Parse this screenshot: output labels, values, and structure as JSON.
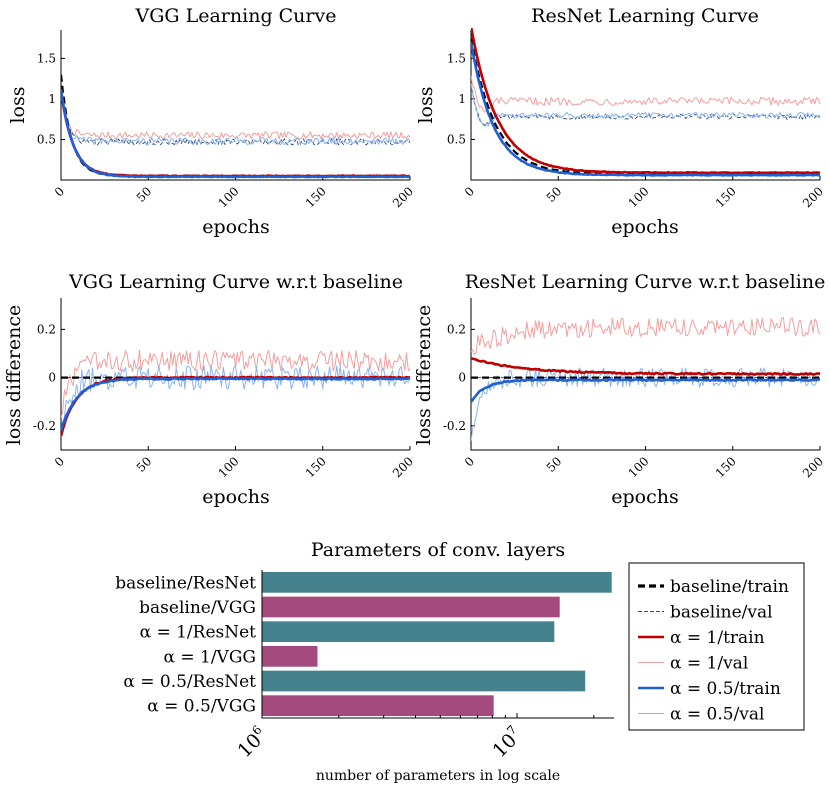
{
  "legend": {
    "items": [
      {
        "label": "baseline/train",
        "color": "#000000",
        "style": "dashed-bold"
      },
      {
        "label": "baseline/val",
        "color": "#2b4b7a",
        "style": "dashed-thin"
      },
      {
        "label": "α = 1/train",
        "color": "#c00000",
        "style": "bold"
      },
      {
        "label": "α = 1/val",
        "color": "#f0a0a0",
        "style": "thin"
      },
      {
        "label": "α = 0.5/train",
        "color": "#1f5fd8",
        "style": "bold"
      },
      {
        "label": "α = 0.5/val",
        "color": "#8ab4f0",
        "style": "thin"
      }
    ]
  },
  "chart_data": [
    {
      "id": "vgg-curve",
      "type": "line",
      "title": "VGG Learning Curve",
      "xlabel": "epochs",
      "ylabel": "loss",
      "xlim": [
        0,
        200
      ],
      "ylim": [
        0,
        1.85
      ],
      "xticks": [
        0,
        50,
        100,
        150,
        200
      ],
      "yticks": [
        0.5,
        1,
        1.5
      ],
      "series": [
        {
          "name": "baseline/train",
          "key": "bt",
          "start": 1.3,
          "end": 0.05,
          "tau": 6,
          "noise": 0.005
        },
        {
          "name": "baseline/val",
          "key": "bv",
          "start": 1.25,
          "end": 0.47,
          "tau": 3,
          "noise": 0.04
        },
        {
          "name": "α = 1/train",
          "key": "at",
          "start": 1.1,
          "end": 0.05,
          "tau": 7,
          "noise": 0.005
        },
        {
          "name": "α = 1/val",
          "key": "av",
          "start": 1.1,
          "end": 0.55,
          "tau": 3,
          "noise": 0.045
        },
        {
          "name": "α = 0.5/train",
          "key": "ht",
          "start": 1.12,
          "end": 0.04,
          "tau": 7,
          "noise": 0.004
        },
        {
          "name": "α = 0.5/val",
          "key": "hv",
          "start": 1.12,
          "end": 0.48,
          "tau": 3,
          "noise": 0.045
        }
      ]
    },
    {
      "id": "resnet-curve",
      "type": "line",
      "title": "ResNet Learning Curve",
      "xlabel": "epochs",
      "ylabel": "loss",
      "xlim": [
        0,
        200
      ],
      "ylim": [
        0,
        1.85
      ],
      "xticks": [
        0,
        50,
        100,
        150,
        200
      ],
      "yticks": [
        0.5,
        1,
        1.5
      ],
      "series": [
        {
          "name": "baseline/train",
          "key": "bt",
          "start": 1.75,
          "end": 0.07,
          "tau": 14,
          "noise": 0.004
        },
        {
          "name": "baseline/val",
          "key": "bv",
          "start": 1.2,
          "end": 0.78,
          "tau": 3,
          "noise": 0.03,
          "dip": 0.65
        },
        {
          "name": "α = 1/train",
          "key": "at",
          "start": 1.9,
          "end": 0.09,
          "tau": 15,
          "noise": 0.004
        },
        {
          "name": "α = 1/val",
          "key": "av",
          "start": 1.3,
          "end": 0.97,
          "tau": 3,
          "noise": 0.05,
          "dip": 0.8
        },
        {
          "name": "α = 0.5/train",
          "key": "ht",
          "start": 1.7,
          "end": 0.06,
          "tau": 13,
          "noise": 0.004
        },
        {
          "name": "α = 0.5/val",
          "key": "hv",
          "start": 1.2,
          "end": 0.8,
          "tau": 3,
          "noise": 0.035,
          "dip": 0.62
        }
      ]
    },
    {
      "id": "vgg-diff",
      "type": "line",
      "title": "VGG Learning Curve w.r.t baseline",
      "xlabel": "epochs",
      "ylabel": "loss difference",
      "xlim": [
        0,
        200
      ],
      "ylim": [
        -0.3,
        0.33
      ],
      "xticks": [
        0,
        50,
        100,
        150,
        200
      ],
      "yticks": [
        -0.2,
        0,
        0.2
      ],
      "series": [
        {
          "name": "baseline/train",
          "key": "bt",
          "start": 0,
          "end": 0,
          "tau": 1,
          "noise": 0
        },
        {
          "name": "baseline/val",
          "key": "bv",
          "start": 0,
          "end": 0,
          "tau": 1,
          "noise": 0
        },
        {
          "name": "α = 1/train",
          "key": "at",
          "start": -0.24,
          "end": 0.0,
          "tau": 9,
          "noise": 0.003
        },
        {
          "name": "α = 1/val",
          "key": "av",
          "start": -0.15,
          "end": 0.07,
          "tau": 6,
          "noise": 0.045
        },
        {
          "name": "α = 0.5/train",
          "key": "ht",
          "start": -0.22,
          "end": -0.005,
          "tau": 9,
          "noise": 0.003
        },
        {
          "name": "α = 0.5/val",
          "key": "hv",
          "start": -0.2,
          "end": 0.0,
          "tau": 5,
          "noise": 0.05
        }
      ]
    },
    {
      "id": "resnet-diff",
      "type": "line",
      "title": "ResNet Learning Curve w.r.t baseline",
      "xlabel": "epochs",
      "ylabel": "loss difference",
      "xlim": [
        0,
        200
      ],
      "ylim": [
        -0.3,
        0.33
      ],
      "xticks": [
        0,
        50,
        100,
        150,
        200
      ],
      "yticks": [
        -0.2,
        0,
        0.2
      ],
      "series": [
        {
          "name": "baseline/train",
          "key": "bt",
          "start": 0,
          "end": 0,
          "tau": 1,
          "noise": 0
        },
        {
          "name": "baseline/val",
          "key": "bv",
          "start": 0,
          "end": 0,
          "tau": 1,
          "noise": 0
        },
        {
          "name": "α = 1/train",
          "key": "at",
          "start": 0.08,
          "end": 0.015,
          "tau": 30,
          "noise": 0.003
        },
        {
          "name": "α = 1/val",
          "key": "av",
          "start": 0.12,
          "end": 0.21,
          "tau": 20,
          "noise": 0.04
        },
        {
          "name": "α = 0.5/train",
          "key": "ht",
          "start": -0.1,
          "end": -0.01,
          "tau": 8,
          "noise": 0.003
        },
        {
          "name": "α = 0.5/val",
          "key": "hv",
          "start": -0.25,
          "end": 0.0,
          "tau": 6,
          "noise": 0.04
        }
      ]
    },
    {
      "id": "params",
      "type": "bar",
      "orientation": "horizontal",
      "title": "Parameters of conv. layers",
      "xlabel": "number of parameters in log scale",
      "xscale": "log",
      "xlim": [
        1000000,
        24000000
      ],
      "xticks": [
        {
          "value": 1000000,
          "base": "10",
          "exp": "6"
        },
        {
          "value": 10000000,
          "base": "10",
          "exp": "7"
        }
      ],
      "categories": [
        "baseline/ResNet",
        "baseline/VGG",
        "α = 1/ResNet",
        "α = 1/VGG",
        "α = 0.5/ResNet",
        "α = 0.5/VGG"
      ],
      "values": [
        23500000,
        14700000,
        14000000,
        1650000,
        18500000,
        8100000
      ],
      "colors": [
        "#46818e",
        "#a44a7e",
        "#46818e",
        "#a44a7e",
        "#46818e",
        "#a44a7e"
      ]
    }
  ]
}
